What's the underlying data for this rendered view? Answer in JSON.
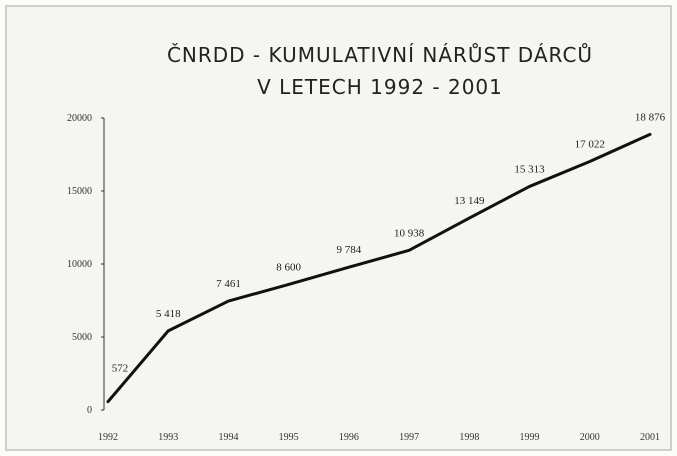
{
  "chart_data": {
    "type": "line",
    "title": [
      "ČNRDD - KUMULATIVNÍ NÁRŮST DÁRCŮ",
      "V LETECH 1992 - 2001"
    ],
    "categories": [
      "1992",
      "1993",
      "1994",
      "1995",
      "1996",
      "1997",
      "1998",
      "1999",
      "2000",
      "2001"
    ],
    "values": [
      572,
      5418,
      7461,
      8600,
      9784,
      10938,
      13149,
      15313,
      17022,
      18876
    ],
    "value_labels": [
      "572",
      "5 418",
      "7 461",
      "8 600",
      "9 784",
      "10 938",
      "13 149",
      "15 313",
      "17 022",
      "18 876"
    ],
    "color": "#111111",
    "ylim": [
      0,
      20000
    ],
    "yticks": [
      0,
      5000,
      10000,
      15000,
      20000
    ],
    "grid": false
  }
}
